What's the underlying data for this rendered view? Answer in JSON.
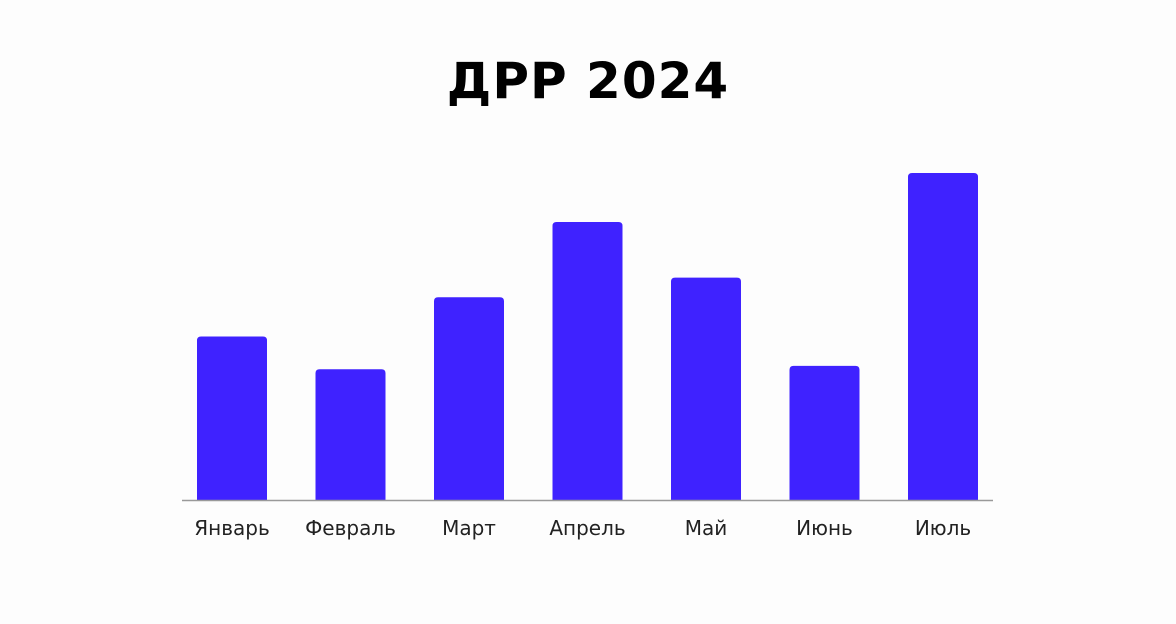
{
  "chart_data": {
    "type": "bar",
    "title": "ДРР 2024",
    "xlabel": "",
    "ylabel": "",
    "categories": [
      "Январь",
      "Февраль",
      "Март",
      "Апрель",
      "Май",
      "Июнь",
      "Июль"
    ],
    "values": [
      5.0,
      4.0,
      6.2,
      8.5,
      6.8,
      4.1,
      10.0
    ],
    "ylim": [
      0,
      10
    ],
    "grid": false,
    "bar_color": "#3f22ff",
    "axis_color": "#999999"
  }
}
